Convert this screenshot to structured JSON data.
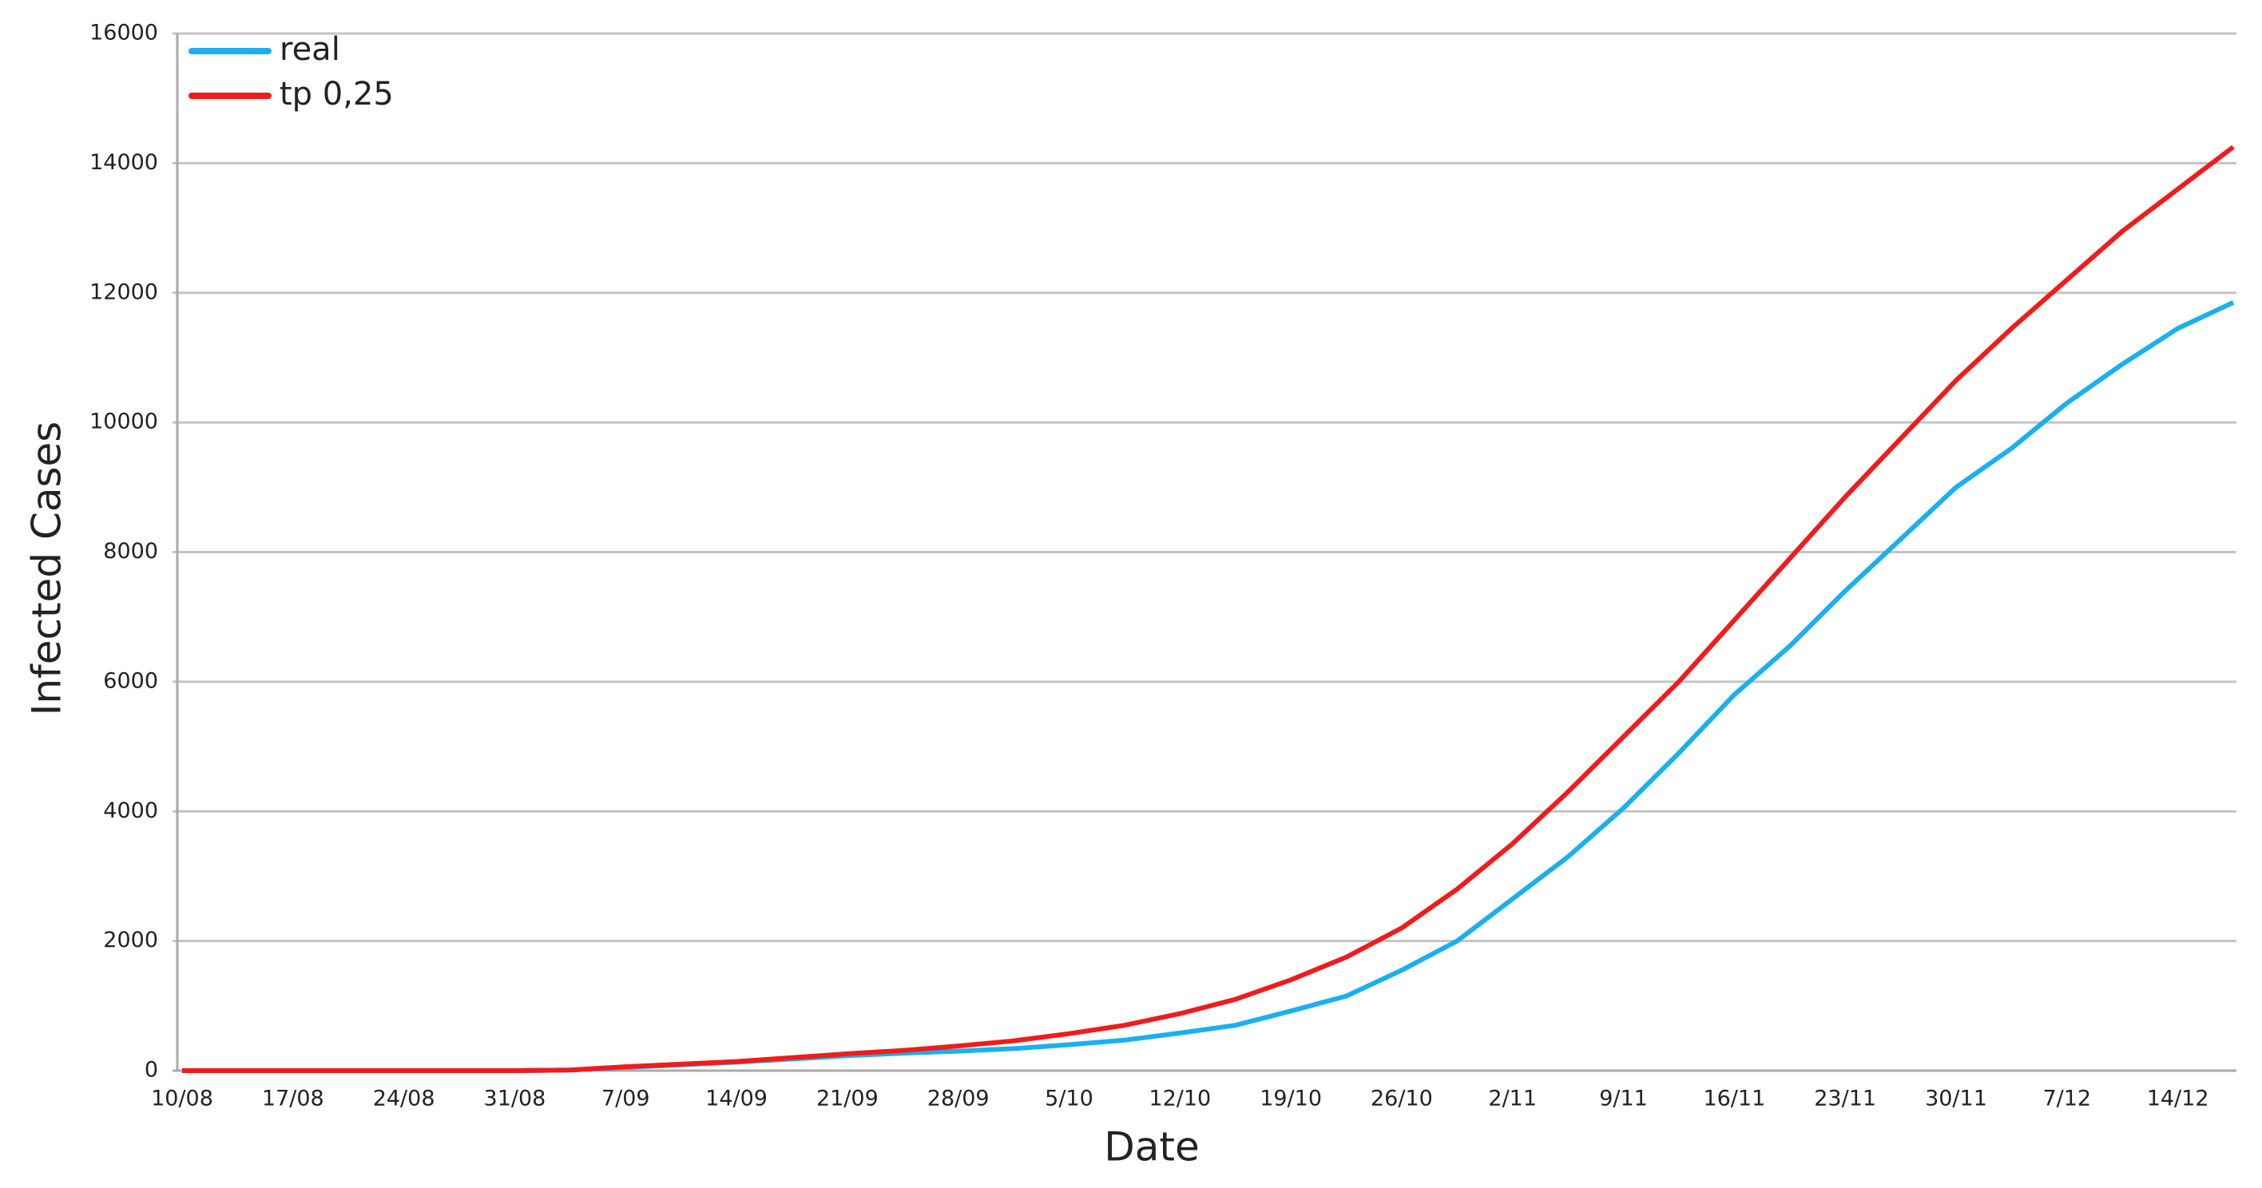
{
  "chart_data": {
    "type": "line",
    "x_label": "Date",
    "y_label": "Infected Cases",
    "categories": [
      "10/08",
      null,
      "17/08",
      null,
      "24/08",
      null,
      "31/08",
      null,
      "7/09",
      null,
      "14/09",
      null,
      "21/09",
      null,
      "28/09",
      null,
      "5/10",
      null,
      "12/10",
      null,
      "19/10",
      null,
      "26/10",
      null,
      "2/11",
      null,
      "9/11",
      null,
      "16/11",
      null,
      "23/11",
      null,
      "30/11",
      null,
      "7/12",
      null,
      "14/12",
      null
    ],
    "series": [
      {
        "name": "real",
        "color": "#1ab0f0",
        "values": [
          0,
          0,
          0,
          0,
          0,
          0,
          0,
          10,
          50,
          90,
          130,
          180,
          230,
          270,
          300,
          340,
          400,
          470,
          580,
          700,
          920,
          1150,
          1550,
          2000,
          2650,
          3300,
          4050,
          4900,
          5800,
          6550,
          7400,
          8200,
          9000,
          9600,
          10300,
          10900,
          11450,
          11850
        ]
      },
      {
        "name": "tp 0,25",
        "color": "#f01c1c",
        "values": [
          0,
          0,
          0,
          0,
          0,
          0,
          0,
          10,
          60,
          100,
          140,
          200,
          260,
          310,
          380,
          460,
          570,
          700,
          880,
          1100,
          1400,
          1750,
          2200,
          2800,
          3500,
          4300,
          5150,
          6000,
          6950,
          7900,
          8850,
          9750,
          10650,
          11450,
          12200,
          12950,
          13600,
          14250
        ]
      }
    ],
    "ylim": [
      0,
      16000
    ],
    "yticks": [
      0,
      2000,
      4000,
      6000,
      8000,
      10000,
      12000,
      14000,
      16000
    ],
    "grid": true,
    "legend": "top-left"
  }
}
